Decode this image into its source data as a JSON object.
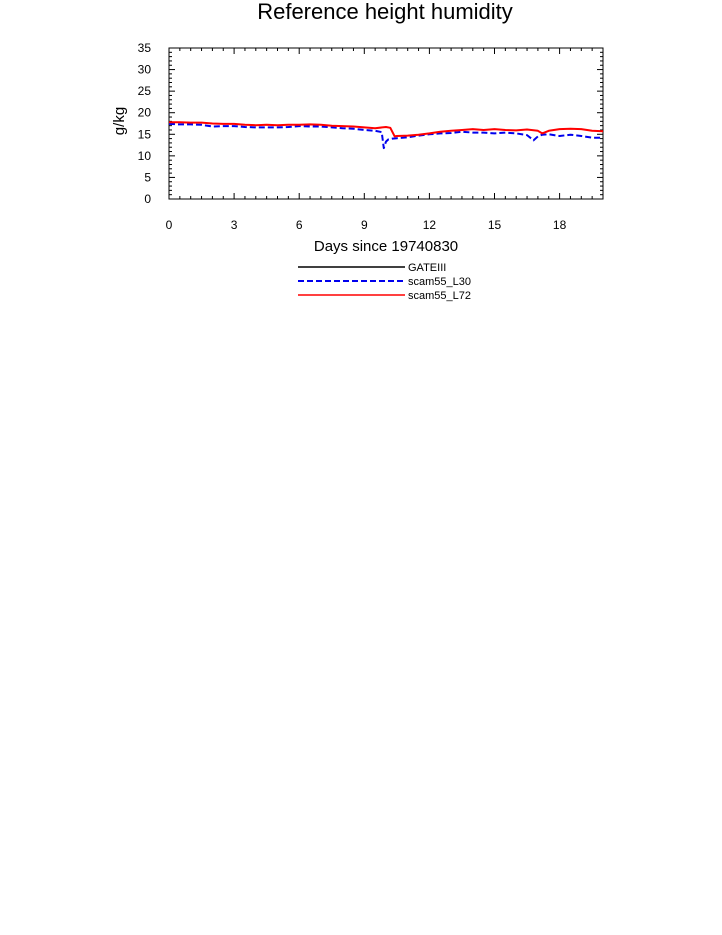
{
  "chart_data": {
    "type": "line",
    "title": "Reference height humidity",
    "xlabel": "Days since 19740830",
    "ylabel": "g/kg",
    "xlim": [
      0,
      20
    ],
    "ylim": [
      0,
      35
    ],
    "xticks": [
      0,
      3,
      6,
      9,
      12,
      15,
      18
    ],
    "yticks": [
      0,
      5,
      10,
      15,
      20,
      25,
      30,
      35
    ],
    "grid": false,
    "legend_position": "below",
    "series": [
      {
        "name": "GATEIII",
        "color": "#000000",
        "dash": "solid",
        "x": [],
        "values": []
      },
      {
        "name": "scam55_L30",
        "color": "#0000ee",
        "dash": "dashed",
        "x": [
          0,
          0.5,
          1,
          1.5,
          2,
          2.5,
          3,
          3.5,
          4,
          4.5,
          5,
          5.5,
          6,
          6.5,
          7,
          7.5,
          8,
          8.5,
          9,
          9.5,
          9.8,
          9.9,
          10.0,
          10.1,
          10.3,
          10.5,
          11,
          11.5,
          12,
          12.5,
          13,
          13.5,
          14,
          14.5,
          15,
          15.5,
          16,
          16.5,
          16.8,
          17,
          17.2,
          17.5,
          18,
          18.5,
          19,
          19.5,
          20
        ],
        "values": [
          17.4,
          17.3,
          17.3,
          17.2,
          16.8,
          16.9,
          16.9,
          16.7,
          16.6,
          16.6,
          16.6,
          16.7,
          16.9,
          16.8,
          16.8,
          16.6,
          16.4,
          16.3,
          16.0,
          15.8,
          15.5,
          11.8,
          13.3,
          13.8,
          14.0,
          14.1,
          14.3,
          14.7,
          15.0,
          15.2,
          15.3,
          15.6,
          15.4,
          15.4,
          15.2,
          15.4,
          15.2,
          14.8,
          13.6,
          14.5,
          14.9,
          15.0,
          14.6,
          14.9,
          14.6,
          14.2,
          14.2
        ]
      },
      {
        "name": "scam55_L72",
        "color": "#ff0000",
        "dash": "solid",
        "x": [
          0,
          0.5,
          1,
          1.5,
          2,
          2.5,
          3,
          3.5,
          4,
          4.5,
          5,
          5.5,
          6,
          6.5,
          7,
          7.5,
          8,
          8.5,
          9,
          9.5,
          10.0,
          10.2,
          10.4,
          10.5,
          11,
          11.5,
          12,
          12.5,
          13,
          13.5,
          14,
          14.5,
          15,
          15.5,
          16,
          16.5,
          17,
          17.2,
          17.5,
          18,
          18.5,
          19,
          19.5,
          20
        ],
        "values": [
          17.8,
          17.8,
          17.7,
          17.7,
          17.5,
          17.4,
          17.4,
          17.2,
          17.1,
          17.2,
          17.1,
          17.2,
          17.2,
          17.3,
          17.2,
          17.0,
          16.9,
          16.8,
          16.6,
          16.4,
          16.7,
          16.5,
          14.5,
          14.6,
          14.7,
          14.9,
          15.2,
          15.6,
          15.8,
          16.0,
          16.2,
          16.0,
          16.2,
          16.0,
          15.9,
          16.1,
          15.8,
          15.2,
          15.8,
          16.2,
          16.3,
          16.2,
          15.8,
          15.7
        ]
      }
    ]
  }
}
